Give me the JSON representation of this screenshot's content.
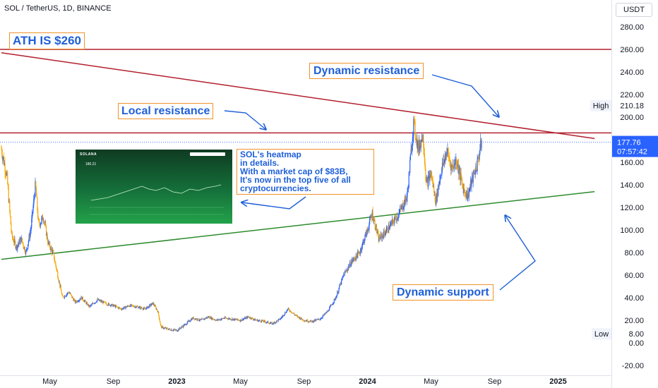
{
  "header": {
    "title": "SOL / TetherUS, 1D, BINANCE"
  },
  "currency_button": "USDT",
  "annotations": {
    "ath": "ATH IS $260",
    "dynamic_resistance": "Dynamic resistance",
    "local_resistance": "Local resistance",
    "dynamic_support": "Dynamic support",
    "note_lines": [
      "SOL's heatmap",
      "in details.",
      "With a market cap of $83B,",
      "It's now in the top five of all",
      "cryptocurrencies."
    ]
  },
  "heatmap_thumbnail": {
    "brand": "SOLANA",
    "value": "180.21"
  },
  "price_labels": {
    "high_label": "High",
    "high_value": "210.18",
    "low_label": "Low",
    "low_value": "8.00",
    "current_price": "177.76",
    "countdown": "07:57:42"
  },
  "colors": {
    "candle_up": "#2962ff",
    "candle_down": "#f7a600",
    "resistance": "#b2202e",
    "support": "#2e8b2e",
    "annotation": "#1e5fd8",
    "box_border": "#f0932b",
    "price_badge": "#2962ff"
  },
  "chart_data": {
    "type": "candlestick",
    "ylim": [
      -20,
      295
    ],
    "y_ticks": [
      "-20.00",
      "0.00",
      "20.00",
      "40.00",
      "60.00",
      "80.00",
      "100.00",
      "120.00",
      "140.00",
      "160.00",
      "180.00",
      "200.00",
      "220.00",
      "240.00",
      "260.00",
      "280.00"
    ],
    "x_ticks": [
      "May",
      "Sep",
      "2023",
      "May",
      "Sep",
      "2024",
      "May",
      "Sep",
      "2025"
    ],
    "x_tick_months": [
      4,
      8,
      12,
      16,
      20,
      24,
      28,
      32,
      36
    ],
    "x_range_months": [
      0.95,
      38.3
    ],
    "horizontal_lines": [
      {
        "name": "ATH",
        "y": 260
      },
      {
        "name": "Local resistance",
        "y": 186
      }
    ],
    "trend_lines": [
      {
        "name": "Dynamic resistance",
        "from": [
          0.95,
          257
        ],
        "to": [
          38.3,
          181
        ]
      },
      {
        "name": "Dynamic support",
        "from": [
          0.95,
          74
        ],
        "to": [
          38.3,
          134
        ]
      }
    ],
    "current_price": 177.76,
    "price_path": [
      [
        0.95,
        172
      ],
      [
        1.3,
        148
      ],
      [
        1.6,
        95
      ],
      [
        1.9,
        85
      ],
      [
        2.2,
        92
      ],
      [
        2.5,
        80
      ],
      [
        2.8,
        100
      ],
      [
        3.1,
        140
      ],
      [
        3.3,
        104
      ],
      [
        3.6,
        112
      ],
      [
        3.9,
        88
      ],
      [
        4.2,
        80
      ],
      [
        4.5,
        60
      ],
      [
        4.8,
        40
      ],
      [
        5.2,
        45
      ],
      [
        5.6,
        36
      ],
      [
        6.0,
        40
      ],
      [
        6.5,
        32
      ],
      [
        7.0,
        38
      ],
      [
        7.5,
        35
      ],
      [
        8.0,
        33
      ],
      [
        8.5,
        30
      ],
      [
        9.0,
        33
      ],
      [
        9.5,
        32
      ],
      [
        10.0,
        30
      ],
      [
        10.5,
        35
      ],
      [
        10.8,
        28
      ],
      [
        11.0,
        14
      ],
      [
        11.5,
        12
      ],
      [
        12.0,
        11
      ],
      [
        12.5,
        16
      ],
      [
        13.0,
        22
      ],
      [
        13.5,
        20
      ],
      [
        14.0,
        23
      ],
      [
        14.5,
        20
      ],
      [
        15.0,
        22
      ],
      [
        15.5,
        21
      ],
      [
        16.0,
        20
      ],
      [
        16.5,
        23
      ],
      [
        17.0,
        20
      ],
      [
        17.5,
        19
      ],
      [
        18.0,
        17
      ],
      [
        18.5,
        21
      ],
      [
        19.0,
        30
      ],
      [
        19.5,
        24
      ],
      [
        20.0,
        20
      ],
      [
        20.5,
        19
      ],
      [
        21.0,
        21
      ],
      [
        21.5,
        28
      ],
      [
        22.0,
        40
      ],
      [
        22.5,
        60
      ],
      [
        23.0,
        72
      ],
      [
        23.5,
        80
      ],
      [
        24.0,
        100
      ],
      [
        24.3,
        115
      ],
      [
        24.7,
        92
      ],
      [
        25.0,
        96
      ],
      [
        25.5,
        105
      ],
      [
        26.0,
        115
      ],
      [
        26.5,
        130
      ],
      [
        26.9,
        195
      ],
      [
        27.2,
        172
      ],
      [
        27.5,
        185
      ],
      [
        27.7,
        140
      ],
      [
        28.0,
        150
      ],
      [
        28.3,
        125
      ],
      [
        28.6,
        150
      ],
      [
        29.0,
        170
      ],
      [
        29.3,
        155
      ],
      [
        29.6,
        162
      ],
      [
        30.0,
        138
      ],
      [
        30.3,
        130
      ],
      [
        30.6,
        145
      ],
      [
        30.9,
        158
      ],
      [
        31.2,
        180
      ]
    ]
  }
}
